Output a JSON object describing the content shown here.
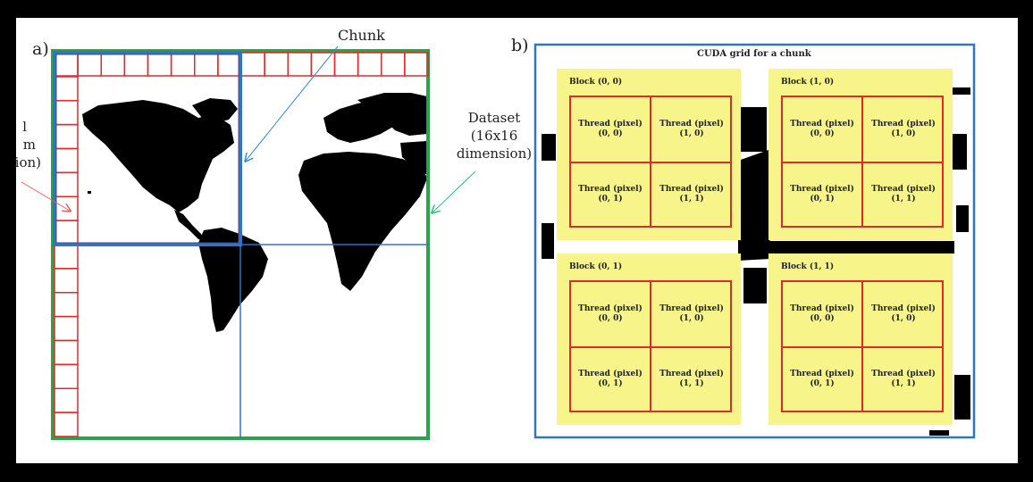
{
  "colors": {
    "background": "#000000",
    "panel": "#ffffff",
    "dataset_border": "#27a547",
    "chunk_border": "#2e74c8",
    "grid_line": "#e02a2a",
    "block_fill": "#f7f58a",
    "arrow_blue": "#3a87d6",
    "arrow_red": "#e06060",
    "arrow_green": "#2dbf78"
  },
  "panel_a": {
    "label": "a)",
    "chunk_label": "Chunk",
    "dataset_lines": [
      "Dataset",
      "(16x16",
      "dimension)"
    ],
    "partial_lines": [
      "l",
      "m",
      "ion)"
    ]
  },
  "panel_b": {
    "label": "b)",
    "title": "CUDA grid for a chunk",
    "blocks": [
      {
        "title": "Block (0, 0)",
        "threads": [
          {
            "line1": "Thread (pixel)",
            "line2": "(0, 0)"
          },
          {
            "line1": "Thread (pixel)",
            "line2": "(1, 0)"
          },
          {
            "line1": "Thread (pixel)",
            "line2": "(0, 1)"
          },
          {
            "line1": "Thread (pixel)",
            "line2": "(1, 1)"
          }
        ]
      },
      {
        "title": "Block (1, 0)",
        "threads": [
          {
            "line1": "Thread (pixel)",
            "line2": "(0, 0)"
          },
          {
            "line1": "Thread (pixel)",
            "line2": "(1, 0)"
          },
          {
            "line1": "Thread (pixel)",
            "line2": "(0, 1)"
          },
          {
            "line1": "Thread (pixel)",
            "line2": "(1, 1)"
          }
        ]
      },
      {
        "title": "Block (0, 1)",
        "threads": [
          {
            "line1": "Thread (pixel)",
            "line2": "(0, 0)"
          },
          {
            "line1": "Thread (pixel)",
            "line2": "(1, 0)"
          },
          {
            "line1": "Thread (pixel)",
            "line2": "(0, 1)"
          },
          {
            "line1": "Thread (pixel)",
            "line2": "(1, 1)"
          }
        ]
      },
      {
        "title": "Block (1, 1)",
        "threads": [
          {
            "line1": "Thread (pixel)",
            "line2": "(0, 0)"
          },
          {
            "line1": "Thread (pixel)",
            "line2": "(1, 0)"
          },
          {
            "line1": "Thread (pixel)",
            "line2": "(0, 1)"
          },
          {
            "line1": "Thread (pixel)",
            "line2": "(1, 1)"
          }
        ]
      }
    ]
  }
}
